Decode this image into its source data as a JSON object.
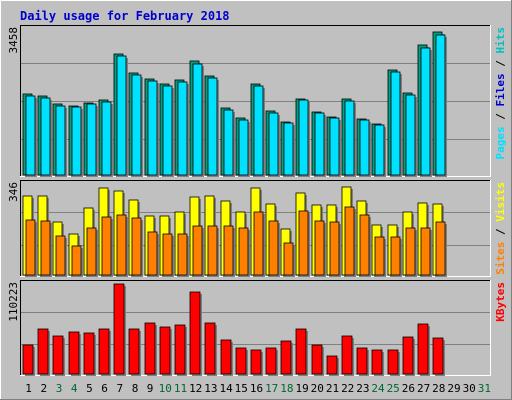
{
  "chart_data": {
    "type": "bar",
    "title": "Daily usage for February 2018",
    "colors": {
      "frame_bg": "#C0C0C0",
      "panel_bg": "#C0C0C0",
      "title": "#0000CC",
      "hits": "#00C0C0",
      "files": "#00E0FF",
      "sites": "#FF8000",
      "visits": "#FFFF00",
      "kbytes": "#FF0000",
      "weekend_label": "#006633",
      "weekday_label": "#000000"
    },
    "x": [
      "1",
      "2",
      "3",
      "4",
      "5",
      "6",
      "7",
      "8",
      "9",
      "10",
      "11",
      "12",
      "13",
      "14",
      "15",
      "16",
      "17",
      "18",
      "19",
      "20",
      "21",
      "22",
      "23",
      "24",
      "25",
      "26",
      "27",
      "28",
      "29",
      "30",
      "31"
    ],
    "weekend_days": [
      "3",
      "4",
      "10",
      "11",
      "17",
      "18",
      "24",
      "25",
      "31"
    ],
    "panels": [
      {
        "id": "pages",
        "ymax_label": "3458",
        "ymax": 3458,
        "legend": [
          {
            "text": "Pages",
            "color": "#00E0FF"
          },
          {
            "text": " / ",
            "color": "#000000"
          },
          {
            "text": "Files",
            "color": "#0000CC"
          },
          {
            "text": " / ",
            "color": "#000000"
          },
          {
            "text": "Hits",
            "color": "#00C0C0"
          }
        ],
        "series": [
          {
            "name": "Hits",
            "color": "#00A080",
            "values": [
              1920,
              1860,
              1670,
              1630,
              1700,
              1780,
              2860,
              2410,
              2280,
              2150,
              2260,
              2690,
              2350,
              1590,
              1340,
              2150,
              1510,
              1260,
              1810,
              1490,
              1370,
              1800,
              1330,
              1210,
              2480,
              1940,
              3070,
              3380
            ]
          },
          {
            "name": "Files",
            "color": "#00E0FF",
            "values": [
              1880,
              1820,
              1630,
              1600,
              1670,
              1740,
              2810,
              2360,
              2230,
              2110,
              2210,
              2630,
              2300,
              1550,
              1310,
              2110,
              1480,
              1230,
              1770,
              1460,
              1340,
              1760,
              1300,
              1190,
              2430,
              1900,
              3010,
              3320
            ]
          }
        ]
      },
      {
        "id": "sites",
        "ymax_label": "346",
        "ymax": 346,
        "legend": [
          {
            "text": "Sites",
            "color": "#FF8000"
          },
          {
            "text": " / ",
            "color": "#000000"
          },
          {
            "text": "Visits",
            "color": "#FFFF00"
          }
        ],
        "series": [
          {
            "name": "Visits",
            "color": "#FFFF00",
            "values": [
              300,
              300,
              200,
              155,
              255,
              330,
              320,
              285,
              225,
              225,
              240,
              295,
              300,
              280,
              240,
              330,
              270,
              175,
              310,
              265,
              265,
              335,
              280,
              190,
              190,
              240,
              275,
              270
            ]
          },
          {
            "name": "Sites",
            "color": "#FF8000",
            "values": [
              210,
              205,
              150,
              110,
              180,
              220,
              230,
              215,
              165,
              155,
              155,
              185,
              185,
              185,
              180,
              240,
              205,
              120,
              245,
              205,
              200,
              260,
              230,
              145,
              145,
              180,
              180,
              200
            ]
          }
        ]
      },
      {
        "id": "kbytes",
        "ymax_label": "110223",
        "ymax": 110223,
        "legend": [
          {
            "text": "KBytes",
            "color": "#FF0000"
          }
        ],
        "series": [
          {
            "name": "KBytes",
            "color": "#FF0000",
            "values": [
              35000,
              55000,
              47000,
              51000,
              50000,
              55000,
              110000,
              55000,
              63000,
              57000,
              60000,
              100000,
              63000,
              42000,
              32000,
              30000,
              32000,
              40000,
              55000,
              35000,
              22000,
              47000,
              32000,
              30000,
              30000,
              45000,
              61000,
              44000
            ]
          }
        ]
      }
    ]
  }
}
